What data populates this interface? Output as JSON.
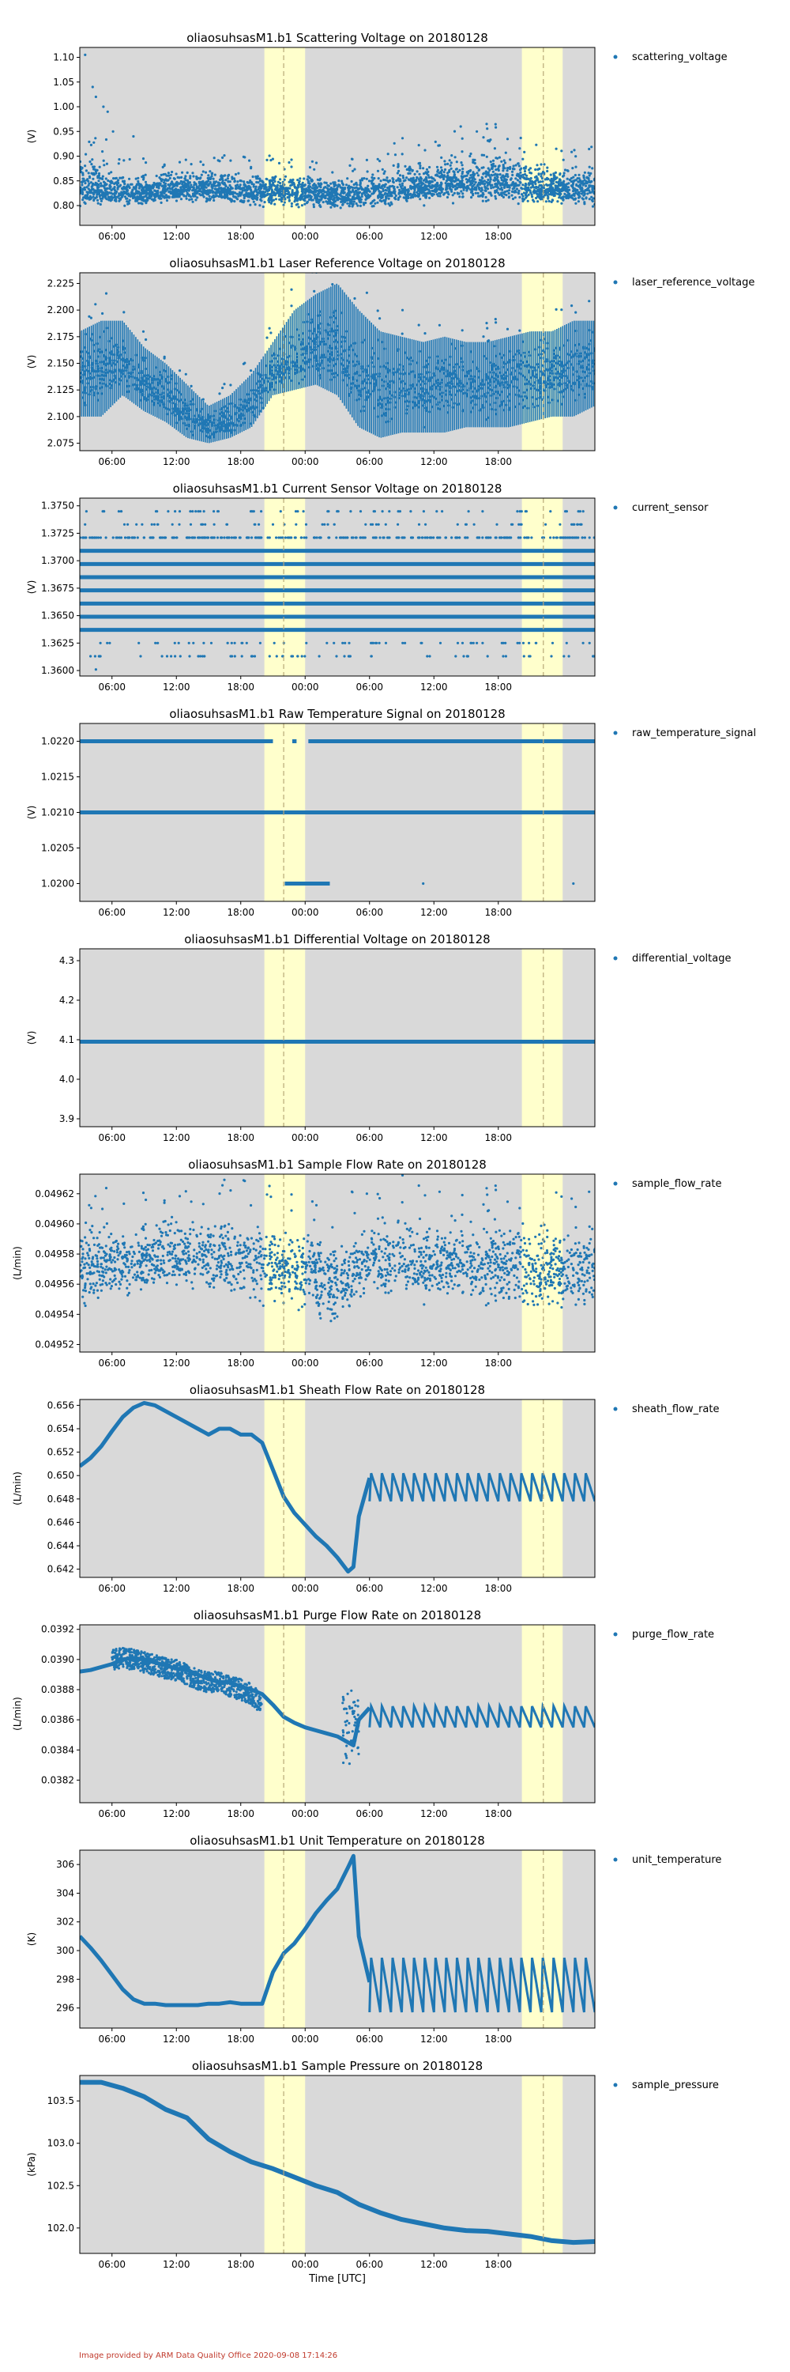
{
  "colors": {
    "plot_background": "#d9d9d9",
    "highlight_band": "#ffffcc",
    "dashed_line": "#b8a878",
    "series": "#1f77b4",
    "credit_text": "#c0392b"
  },
  "x_ticks": [
    "06:00",
    "12:00",
    "18:00",
    "00:00",
    "06:00",
    "12:00",
    "18:00"
  ],
  "x_axis_label": "Time [UTC]",
  "credit": "Image provided by ARM Data Quality Office 2020-09-08 17:14:26",
  "chart_data": [
    {
      "type": "scatter",
      "title": "oliaosuhsasM1.b1 Scattering Voltage on 20180128",
      "ylabel": "(V)",
      "legend": "scattering_voltage",
      "ylim": [
        0.76,
        1.12
      ],
      "yticks": [
        "1.10",
        "1.05",
        "1.00",
        "0.95",
        "0.90",
        "0.85",
        "0.80"
      ],
      "tick_values": [
        1.1,
        1.05,
        1.0,
        0.95,
        0.9,
        0.85,
        0.8
      ],
      "series": [
        {
          "name": "scattering_voltage",
          "hours": [
            0,
            2,
            4,
            6,
            8,
            10,
            12,
            14,
            16,
            18,
            20,
            22,
            24,
            26,
            28,
            30,
            32,
            34,
            36,
            38,
            40,
            42,
            44,
            46,
            48
          ],
          "values": [
            0.835,
            0.83,
            0.83,
            0.825,
            0.83,
            0.835,
            0.835,
            0.83,
            0.825,
            0.83,
            0.825,
            0.825,
            0.82,
            0.82,
            0.83,
            0.835,
            0.84,
            0.845,
            0.845,
            0.85,
            0.845,
            0.84,
            0.835,
            0.835,
            0.835
          ],
          "lows": [
            0.795,
            0.79,
            0.795,
            0.795,
            0.8,
            0.8,
            0.8,
            0.8,
            0.795,
            0.795,
            0.79,
            0.79,
            0.785,
            0.785,
            0.79,
            0.795,
            0.795,
            0.8,
            0.8,
            0.8,
            0.8,
            0.795,
            0.795,
            0.79,
            0.79
          ],
          "highs": [
            0.92,
            0.9,
            0.88,
            0.875,
            0.875,
            0.88,
            0.88,
            0.875,
            0.87,
            0.875,
            0.87,
            0.87,
            0.865,
            0.87,
            0.88,
            0.9,
            0.9,
            0.905,
            0.92,
            0.93,
            0.92,
            0.9,
            0.89,
            0.89,
            0.89
          ]
        }
      ]
    },
    {
      "type": "scatter",
      "title": "oliaosuhsasM1.b1 Laser Reference Voltage on 20180128",
      "ylabel": "(V)",
      "legend": "laser_reference_voltage",
      "ylim": [
        2.068,
        2.235
      ],
      "yticks": [
        "2.225",
        "2.200",
        "2.175",
        "2.150",
        "2.125",
        "2.100",
        "2.075"
      ],
      "tick_values": [
        2.225,
        2.2,
        2.175,
        2.15,
        2.125,
        2.1,
        2.075
      ],
      "series": [
        {
          "name": "laser_reference_voltage",
          "hours": [
            0,
            2,
            4,
            6,
            8,
            10,
            12,
            14,
            16,
            18,
            20,
            22,
            24,
            26,
            28,
            30,
            32,
            34,
            36,
            38,
            40,
            42,
            44,
            46,
            48
          ],
          "values": [
            2.14,
            2.145,
            2.15,
            2.13,
            2.12,
            2.1,
            2.09,
            2.095,
            2.11,
            2.14,
            2.15,
            2.16,
            2.165,
            2.13,
            2.125,
            2.13,
            2.13,
            2.135,
            2.13,
            2.13,
            2.135,
            2.14,
            2.14,
            2.145,
            2.15
          ],
          "lows": [
            2.1,
            2.1,
            2.12,
            2.105,
            2.095,
            2.08,
            2.075,
            2.08,
            2.09,
            2.12,
            2.125,
            2.13,
            2.12,
            2.09,
            2.08,
            2.085,
            2.085,
            2.085,
            2.09,
            2.09,
            2.09,
            2.095,
            2.1,
            2.1,
            2.11
          ],
          "highs": [
            2.18,
            2.19,
            2.19,
            2.165,
            2.15,
            2.13,
            2.11,
            2.12,
            2.14,
            2.17,
            2.2,
            2.215,
            2.225,
            2.2,
            2.18,
            2.175,
            2.17,
            2.175,
            2.17,
            2.17,
            2.175,
            2.18,
            2.18,
            2.19,
            2.19
          ]
        }
      ]
    },
    {
      "type": "scatter",
      "title": "oliaosuhsasM1.b1 Current Sensor Voltage on 20180128",
      "ylabel": "(V)",
      "legend": "current_sensor",
      "ylim": [
        1.3595,
        1.3757
      ],
      "yticks": [
        "1.3750",
        "1.3725",
        "1.3700",
        "1.3675",
        "1.3650",
        "1.3625",
        "1.3600"
      ],
      "tick_values": [
        1.375,
        1.3725,
        1.37,
        1.3675,
        1.365,
        1.3625,
        1.36
      ],
      "levels": [
        1.3637,
        1.3649,
        1.3661,
        1.3673,
        1.3685,
        1.3697,
        1.3709
      ],
      "sparse_levels": [
        1.3613,
        1.3625,
        1.3721,
        1.3733,
        1.3745
      ]
    },
    {
      "type": "scatter",
      "title": "oliaosuhsasM1.b1 Raw Temperature Signal on 20180128",
      "ylabel": "(V)",
      "legend": "raw_temperature_signal",
      "ylim": [
        1.01975,
        1.02225
      ],
      "yticks": [
        "1.0220",
        "1.0215",
        "1.0210",
        "1.0205",
        "1.0200"
      ],
      "tick_values": [
        1.022,
        1.0215,
        1.021,
        1.0205,
        1.02
      ],
      "levels": [
        1.021
      ],
      "upper_level": 1.022,
      "lower_level": 1.02
    },
    {
      "type": "scatter",
      "title": "oliaosuhsasM1.b1 Differential Voltage on 20180128",
      "ylabel": "(V)",
      "legend": "differential_voltage",
      "ylim": [
        3.88,
        4.33
      ],
      "yticks": [
        "4.3",
        "4.2",
        "4.1",
        "4.0",
        "3.9"
      ],
      "tick_values": [
        4.3,
        4.2,
        4.1,
        4.0,
        3.9
      ],
      "levels": [
        4.095
      ]
    },
    {
      "type": "scatter",
      "title": "oliaosuhsasM1.b1 Sample Flow Rate on 20180128",
      "ylabel": "(L/min)",
      "legend": "sample_flow_rate",
      "ylim": [
        0.049515,
        0.049633
      ],
      "yticks": [
        "0.04962",
        "0.04960",
        "0.04958",
        "0.04956",
        "0.04954",
        "0.04952"
      ],
      "tick_values": [
        0.04962,
        0.0496,
        0.04958,
        0.04956,
        0.04954,
        0.04952
      ],
      "series": [
        {
          "name": "sample_flow_rate",
          "hours": [
            0,
            2,
            4,
            6,
            8,
            10,
            12,
            14,
            16,
            18,
            20,
            22,
            24,
            26,
            28,
            30,
            32,
            34,
            36,
            38,
            40,
            42,
            44,
            46,
            48
          ],
          "values": [
            0.049572,
            0.049573,
            0.049575,
            0.049576,
            0.049578,
            0.049578,
            0.049577,
            0.049576,
            0.049574,
            0.049572,
            0.04957,
            0.049566,
            0.04956,
            0.049572,
            0.049576,
            0.049576,
            0.049575,
            0.049574,
            0.049574,
            0.049573,
            0.049572,
            0.049571,
            0.04957,
            0.04957,
            0.049571
          ],
          "lows": [
            0.049535,
            0.04954,
            0.049545,
            0.049548,
            0.049552,
            0.049552,
            0.04955,
            0.049548,
            0.049545,
            0.049542,
            0.049538,
            0.04953,
            0.049523,
            0.049538,
            0.049545,
            0.049545,
            0.049543,
            0.049542,
            0.049542,
            0.04954,
            0.049538,
            0.049536,
            0.049535,
            0.049535,
            0.049538
          ],
          "highs": [
            0.049605,
            0.049605,
            0.049606,
            0.049608,
            0.04961,
            0.049612,
            0.049611,
            0.04961,
            0.049608,
            0.049605,
            0.049603,
            0.0496,
            0.049596,
            0.049606,
            0.04961,
            0.049612,
            0.049612,
            0.04961,
            0.04961,
            0.049608,
            0.049608,
            0.049607,
            0.049605,
            0.049605,
            0.049606
          ]
        }
      ]
    },
    {
      "type": "line",
      "title": "oliaosuhsasM1.b1 Sheath Flow Rate on 20180128",
      "ylabel": "(L/min)",
      "legend": "sheath_flow_rate",
      "ylim": [
        0.6413,
        0.6565
      ],
      "yticks": [
        "0.656",
        "0.654",
        "0.652",
        "0.650",
        "0.648",
        "0.646",
        "0.644",
        "0.642"
      ],
      "tick_values": [
        0.656,
        0.654,
        0.652,
        0.65,
        0.648,
        0.646,
        0.644,
        0.642
      ],
      "series": [
        {
          "name": "sheath_flow_rate",
          "hours": [
            0,
            1,
            2,
            3,
            4,
            5,
            6,
            7,
            8,
            9,
            10,
            11,
            12,
            13,
            14,
            15,
            16,
            17,
            18,
            19,
            20,
            21,
            22,
            23,
            24,
            25,
            25.5,
            26,
            27
          ],
          "values": [
            0.6508,
            0.6515,
            0.6525,
            0.6538,
            0.655,
            0.6558,
            0.6562,
            0.656,
            0.6555,
            0.655,
            0.6545,
            0.654,
            0.6535,
            0.654,
            0.654,
            0.6535,
            0.6535,
            0.6528,
            0.6505,
            0.6482,
            0.6468,
            0.6458,
            0.6448,
            0.644,
            0.643,
            0.6418,
            0.6422,
            0.6465,
            0.6498
          ]
        }
      ],
      "oscillation": {
        "start_hour": 27,
        "end_hour": 48,
        "center": 0.649,
        "amplitude": 0.0012,
        "period_hours": 1.0
      }
    },
    {
      "type": "line",
      "title": "oliaosuhsasM1.b1 Purge Flow Rate on 20180128",
      "ylabel": "(L/min)",
      "legend": "purge_flow_rate",
      "ylim": [
        0.03805,
        0.03923
      ],
      "yticks": [
        "0.0392",
        "0.0390",
        "0.0388",
        "0.0386",
        "0.0384",
        "0.0382"
      ],
      "tick_values": [
        0.0392,
        0.039,
        0.0388,
        0.0386,
        0.0384,
        0.0382
      ],
      "series": [
        {
          "name": "purge_flow_rate",
          "hours": [
            0,
            1,
            2,
            3,
            4,
            5,
            6,
            7,
            8,
            9,
            10,
            11,
            12,
            13,
            14,
            15,
            16,
            17,
            18,
            19,
            20,
            21,
            22,
            23,
            24,
            25,
            25.5,
            26,
            27
          ],
          "values": [
            0.03892,
            0.03893,
            0.03895,
            0.03897,
            0.039,
            0.03901,
            0.039,
            0.03898,
            0.03896,
            0.03894,
            0.03893,
            0.0389,
            0.03887,
            0.03885,
            0.03885,
            0.03882,
            0.0388,
            0.03877,
            0.0387,
            0.03862,
            0.03858,
            0.03855,
            0.03853,
            0.03851,
            0.03849,
            0.03845,
            0.03843,
            0.0386,
            0.03868
          ]
        }
      ],
      "oscillation": {
        "start_hour": 27,
        "end_hour": 48,
        "center": 0.03862,
        "amplitude": 7e-05,
        "period_hours": 1.0
      }
    },
    {
      "type": "line",
      "title": "oliaosuhsasM1.b1 Unit Temperature on 20180128",
      "ylabel": "(K)",
      "legend": "unit_temperature",
      "ylim": [
        294.6,
        307.0
      ],
      "yticks": [
        "306",
        "304",
        "302",
        "300",
        "298",
        "296"
      ],
      "tick_values": [
        306,
        304,
        302,
        300,
        298,
        296
      ],
      "series": [
        {
          "name": "unit_temperature",
          "hours": [
            0,
            1,
            2,
            3,
            4,
            5,
            6,
            7,
            8,
            9,
            10,
            11,
            12,
            13,
            14,
            15,
            16,
            17,
            18,
            19,
            20,
            21,
            22,
            23,
            24,
            25,
            25.5,
            26,
            27
          ],
          "values": [
            301.0,
            300.2,
            299.3,
            298.3,
            297.3,
            296.6,
            296.3,
            296.3,
            296.2,
            296.2,
            296.2,
            296.2,
            296.3,
            296.3,
            296.4,
            296.3,
            296.3,
            296.3,
            298.5,
            299.8,
            300.5,
            301.5,
            302.6,
            303.5,
            304.3,
            305.8,
            306.6,
            301.0,
            297.8
          ]
        }
      ],
      "oscillation": {
        "start_hour": 27,
        "end_hour": 48,
        "center": 297.6,
        "amplitude": 1.9,
        "period_hours": 1.0
      }
    },
    {
      "type": "line",
      "title": "oliaosuhsasM1.b1 Sample Pressure on 20180128",
      "ylabel": "(kPa)",
      "legend": "sample_pressure",
      "ylim": [
        101.7,
        103.8
      ],
      "yticks": [
        "103.5",
        "103.0",
        "102.5",
        "102.0"
      ],
      "tick_values": [
        103.5,
        103.0,
        102.5,
        102.0
      ],
      "series": [
        {
          "name": "sample_pressure",
          "hours": [
            0,
            2,
            4,
            6,
            8,
            10,
            12,
            14,
            16,
            18,
            20,
            22,
            24,
            26,
            28,
            30,
            32,
            34,
            36,
            38,
            40,
            42,
            44,
            46,
            48
          ],
          "values": [
            103.72,
            103.72,
            103.65,
            103.55,
            103.4,
            103.3,
            103.05,
            102.9,
            102.78,
            102.7,
            102.6,
            102.5,
            102.42,
            102.28,
            102.18,
            102.1,
            102.05,
            102.0,
            101.97,
            101.96,
            101.93,
            101.9,
            101.85,
            101.83,
            101.84
          ]
        }
      ]
    }
  ]
}
